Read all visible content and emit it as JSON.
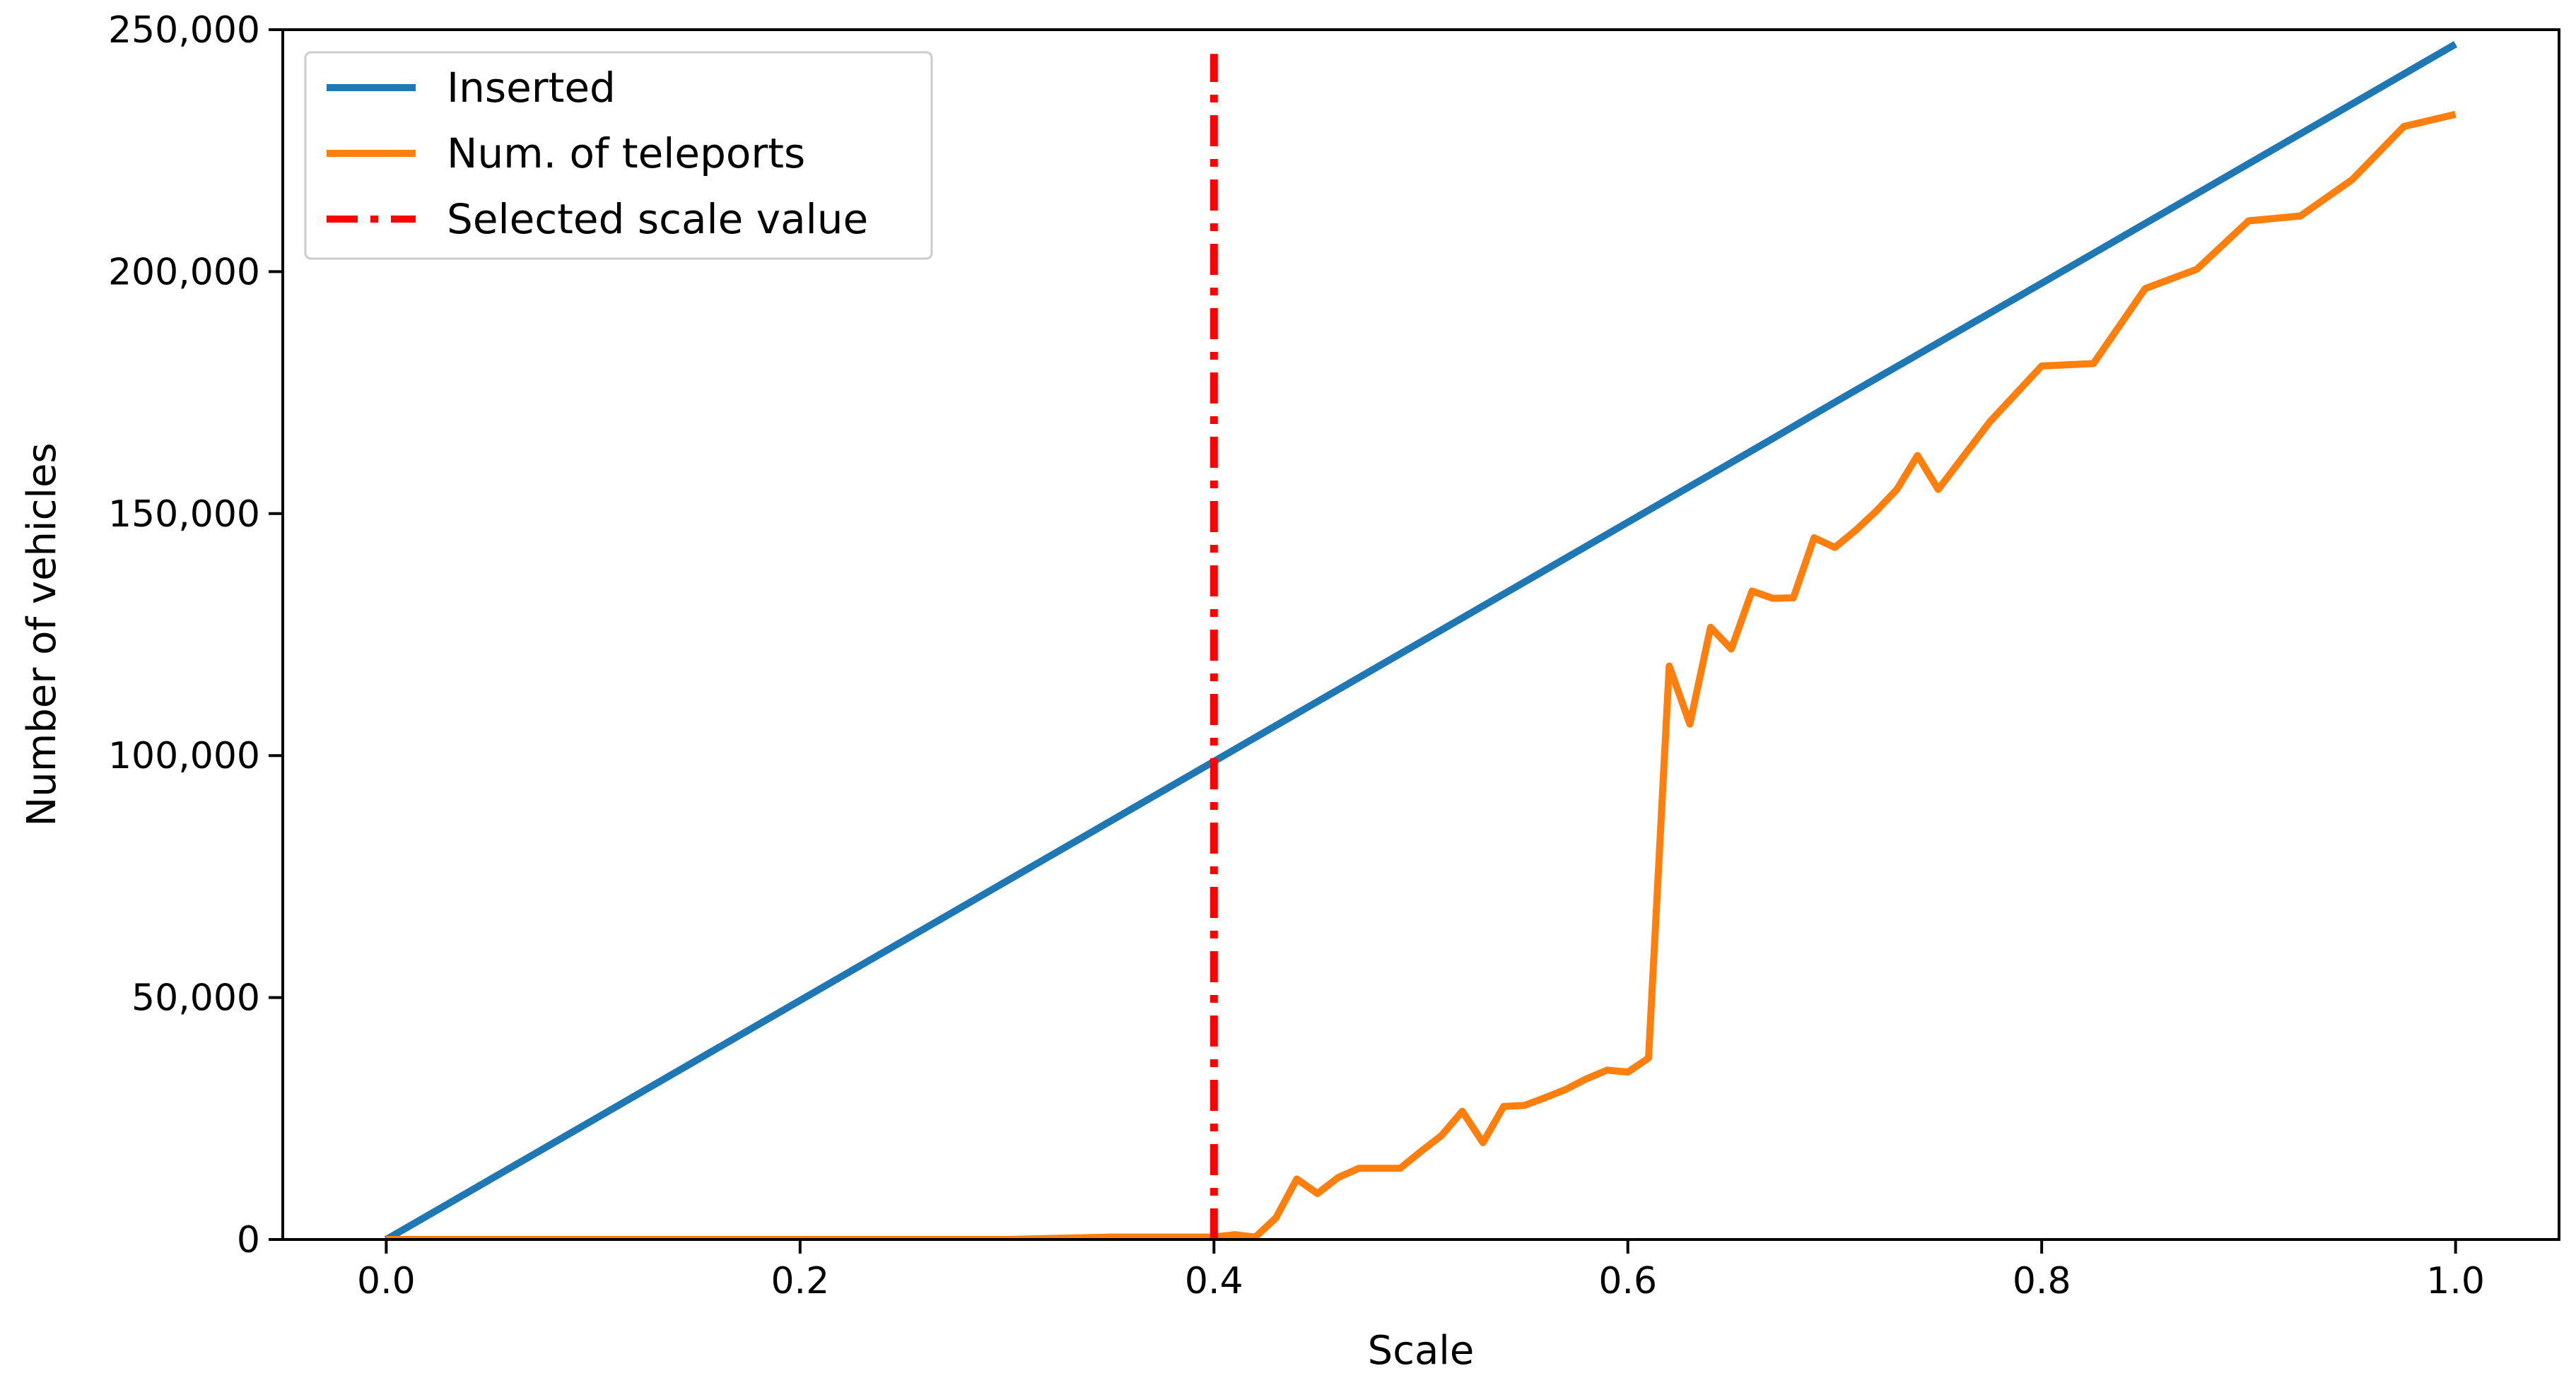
{
  "chart_data": {
    "type": "line",
    "title": "",
    "xlabel": "Scale",
    "ylabel": "Number of vehicles",
    "xlim": [
      -0.05,
      1.05
    ],
    "ylim": [
      0,
      250000
    ],
    "xticks": [
      0.0,
      0.2,
      0.4,
      0.6,
      0.8,
      1.0
    ],
    "xtick_labels": [
      "0.0",
      "0.2",
      "0.4",
      "0.6",
      "0.8",
      "1.0"
    ],
    "yticks": [
      0,
      50000,
      100000,
      150000,
      200000,
      250000
    ],
    "ytick_labels": [
      "0",
      "50,000",
      "100,000",
      "150,000",
      "200,000",
      "250,000"
    ],
    "grid": false,
    "legend_position": "top-left",
    "series": [
      {
        "name": "Inserted",
        "color": "#1f77b4",
        "style": "solid",
        "x": [
          0.0,
          0.1,
          0.2,
          0.3,
          0.4,
          0.5,
          0.6,
          0.67,
          0.68,
          0.7,
          0.8,
          0.9,
          1.0
        ],
        "y": [
          0,
          24700,
          49400,
          74100,
          98800,
          123500,
          148200,
          165500,
          168000,
          173000,
          197600,
          222300,
          247000
        ]
      },
      {
        "name": "Num. of teleports",
        "color": "#ff7f0e",
        "style": "solid",
        "x": [
          0.0,
          0.1,
          0.2,
          0.3,
          0.35,
          0.4,
          0.41,
          0.42,
          0.43,
          0.44,
          0.45,
          0.46,
          0.47,
          0.48,
          0.49,
          0.5,
          0.51,
          0.52,
          0.53,
          0.54,
          0.55,
          0.56,
          0.57,
          0.58,
          0.59,
          0.6,
          0.61,
          0.62,
          0.63,
          0.64,
          0.65,
          0.66,
          0.67,
          0.68,
          0.69,
          0.7,
          0.71,
          0.72,
          0.73,
          0.74,
          0.75,
          0.775,
          0.8,
          0.825,
          0.85,
          0.875,
          0.9,
          0.925,
          0.95,
          0.975,
          1.0
        ],
        "y": [
          0,
          0,
          0,
          0,
          500,
          500,
          1000,
          500,
          4500,
          12500,
          9500,
          12800,
          14700,
          14700,
          14700,
          18200,
          21500,
          26500,
          20000,
          27500,
          27700,
          29300,
          31000,
          33200,
          35000,
          34600,
          37500,
          118500,
          106500,
          126500,
          122000,
          134000,
          132500,
          132600,
          145000,
          143000,
          146500,
          150500,
          155000,
          162000,
          155000,
          169000,
          180500,
          181000,
          196500,
          200500,
          210500,
          211500,
          219000,
          230000,
          232500
        ]
      },
      {
        "name": "Selected scale value",
        "color": "#ff0000",
        "style": "dashdot",
        "x": [
          0.4,
          0.4
        ],
        "y": [
          0,
          245000
        ]
      }
    ]
  }
}
